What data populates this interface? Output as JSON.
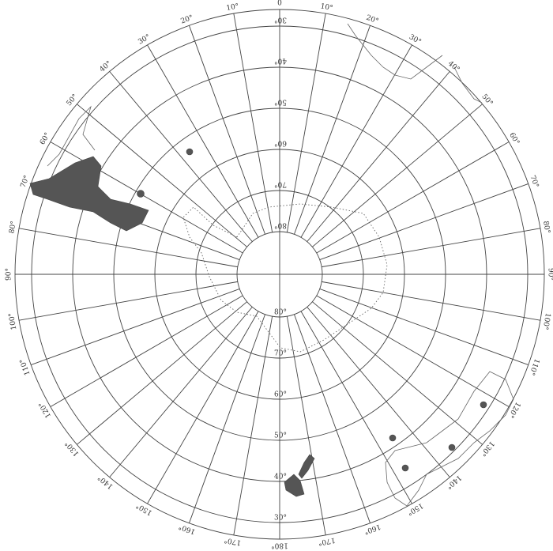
{
  "map": {
    "longitude_labels": [
      "0",
      "10°",
      "20°",
      "30°",
      "40°",
      "50°",
      "60°",
      "70°",
      "80°",
      "90°",
      "100°",
      "110°",
      "120°",
      "130°",
      "140°",
      "150°",
      "160°",
      "170°",
      "180°",
      "170°",
      "160°",
      "150°",
      "140°",
      "130°",
      "120°",
      "110°",
      "100°",
      "90°",
      "80°",
      "70°",
      "60°",
      "50°",
      "40°",
      "30°",
      "20°",
      "10°"
    ],
    "latitude_labels_upper": [
      "80°",
      "70°",
      "60°",
      "50°",
      "40°",
      "30°"
    ],
    "latitude_labels_lower": [
      "80°",
      "70°",
      "60°",
      "50°",
      "40°",
      "30°"
    ]
  }
}
